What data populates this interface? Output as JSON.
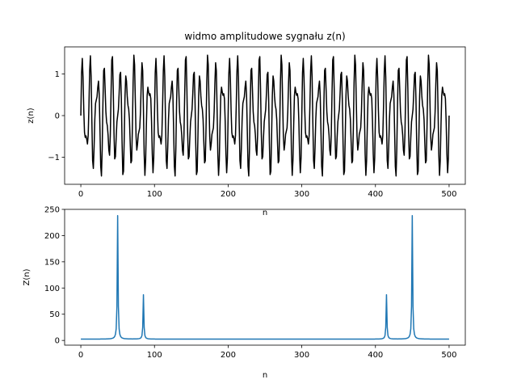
{
  "chart_data": [
    {
      "type": "line",
      "title": "widmo amplitudowe sygnału z(n)",
      "xlabel": "n",
      "ylabel": "z(n)",
      "xlim": [
        -22,
        522
      ],
      "ylim": [
        -1.65,
        1.65
      ],
      "xticks": [
        0,
        100,
        200,
        300,
        400,
        500
      ],
      "yticks": [
        -1,
        0,
        1
      ],
      "grid": false,
      "color": "#000000",
      "series": [
        {
          "signal": {
            "components": [
              {
                "amplitude": 1.0,
                "cycles": 50
              },
              {
                "amplitude": 0.5,
                "cycles": 85
              }
            ],
            "n_start": 0,
            "n_end": 500
          }
        }
      ]
    },
    {
      "type": "line",
      "title": "",
      "xlabel": "n",
      "ylabel": "Z(n)",
      "xlim": [
        -22,
        522
      ],
      "ylim": [
        -9,
        250
      ],
      "xticks": [
        0,
        100,
        200,
        300,
        400,
        500
      ],
      "yticks": [
        0,
        50,
        100,
        150,
        200,
        250
      ],
      "grid": false,
      "color": "#1f77b4",
      "series": [
        {
          "spectrum": {
            "peaks": [
              {
                "n": 50,
                "value": 238
              },
              {
                "n": 85,
                "value": 87
              },
              {
                "n": 415,
                "value": 87
              },
              {
                "n": 450,
                "value": 238
              }
            ],
            "baseline": 2.5,
            "n_start": 0,
            "n_end": 500
          }
        }
      ]
    }
  ]
}
